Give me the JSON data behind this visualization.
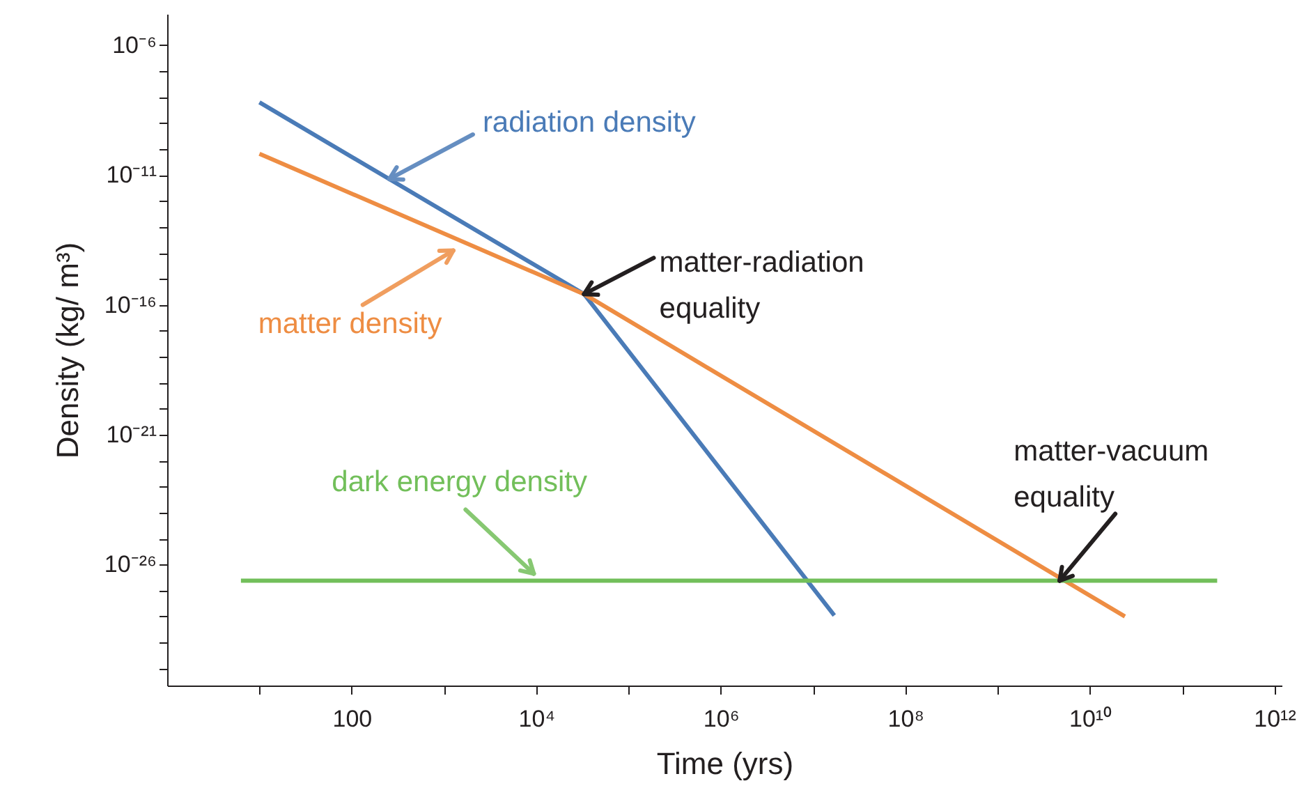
{
  "chart_data": {
    "type": "line",
    "xlabel": "Time (yrs)",
    "ylabel": "Density (kg/ m³)",
    "log": "xy",
    "xlim": [
      1,
      1200000000000.0
    ],
    "ylim": [
      2.2e-31,
      1.6e-05
    ],
    "xticks": [
      {
        "value": 10,
        "label": null
      },
      100,
      {
        "value": 1000,
        "label": null
      },
      {
        "value": 10000,
        "label": "10⁴"
      },
      {
        "value": 100000,
        "label": null
      },
      {
        "value": 1000000,
        "label": "10⁶"
      },
      {
        "value": 10000000,
        "label": null
      },
      {
        "value": 100000000,
        "label": "10⁸"
      },
      {
        "value": 1000000000,
        "label": null
      },
      {
        "value": 10000000000,
        "label": "10¹⁰"
      },
      {
        "value": 100000000000,
        "label": null
      },
      {
        "value": 1000000000000,
        "label": "10¹²"
      }
    ],
    "yticks": [
      {
        "value": 1e-06,
        "label": "10⁻⁶"
      },
      {
        "value": 1e-07,
        "label": null
      },
      {
        "value": 1e-08,
        "label": null
      },
      {
        "value": 1e-09,
        "label": null
      },
      {
        "value": 1e-10,
        "label": null
      },
      {
        "value": 1e-11,
        "label": "10⁻¹¹"
      },
      {
        "value": 1e-12,
        "label": null
      },
      {
        "value": 1e-13,
        "label": null
      },
      {
        "value": 1e-14,
        "label": null
      },
      {
        "value": 1e-15,
        "label": null
      },
      {
        "value": 1e-16,
        "label": "10⁻¹⁶"
      },
      {
        "value": 1e-17,
        "label": null
      },
      {
        "value": 1e-18,
        "label": null
      },
      {
        "value": 1e-19,
        "label": null
      },
      {
        "value": 1e-20,
        "label": null
      },
      {
        "value": 1e-21,
        "label": "10⁻²¹"
      },
      {
        "value": 1e-22,
        "label": null
      },
      {
        "value": 1e-23,
        "label": null
      },
      {
        "value": 1e-24,
        "label": null
      },
      {
        "value": 1e-25,
        "label": null
      },
      {
        "value": 1e-26,
        "label": "10⁻²⁶"
      },
      {
        "value": 1e-27,
        "label": null
      },
      {
        "value": 1e-28,
        "label": null
      },
      {
        "value": 1e-29,
        "label": null
      },
      {
        "value": 1e-30,
        "label": null
      }
    ],
    "series": [
      {
        "name": "radiation density",
        "color": "#4a7bb7",
        "x": [
          10,
          33000,
          17000000.0
        ],
        "values": [
          6.3e-09,
          2.6e-16,
          1.1e-28
        ]
      },
      {
        "name": "matter density",
        "color": "#ee8d43",
        "x": [
          10,
          33000,
          24000000000.0
        ],
        "values": [
          6.6e-11,
          2.6e-16,
          1e-28
        ]
      },
      {
        "name": "dark energy density",
        "color": "#72bf5a",
        "x": [
          6.3,
          240000000000.0
        ],
        "values": [
          2.4e-27,
          2.4e-27
        ]
      }
    ],
    "annotations": [
      {
        "text": "matter-radiation equality",
        "x": 33000,
        "y": 2.6e-16
      },
      {
        "text": "matter-vacuum equality",
        "x": 4700000000.0,
        "y": 2.4e-27
      }
    ]
  }
}
